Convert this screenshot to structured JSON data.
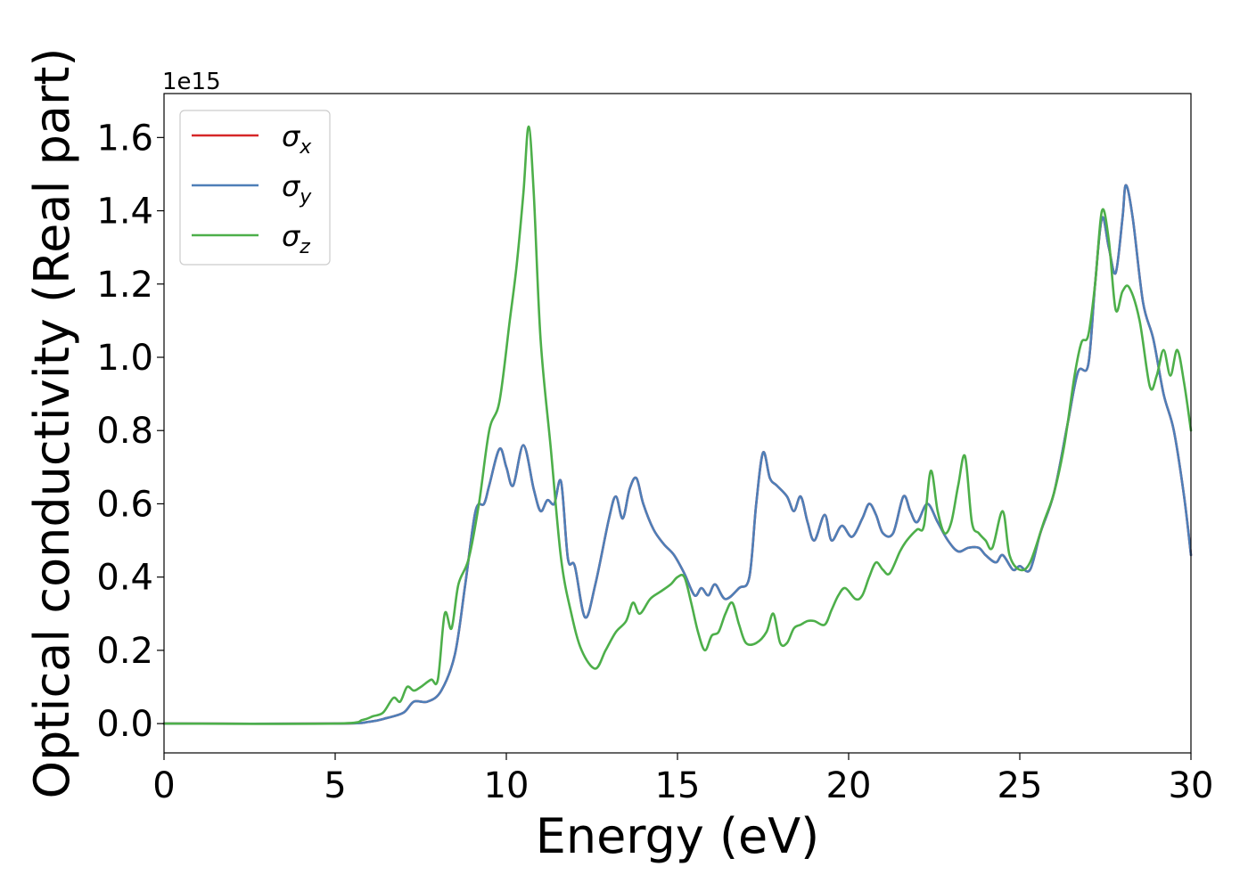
{
  "chart_data": {
    "type": "line",
    "xlabel": "Energy (eV)",
    "ylabel": "Optical conductivity (Real part)",
    "y_offset_label": "1e15",
    "xlim": [
      0,
      30
    ],
    "ylim": [
      -0.08,
      1.72
    ],
    "x_ticks": [
      0,
      5,
      10,
      15,
      20,
      25,
      30
    ],
    "x_tick_labels": [
      "0",
      "5",
      "10",
      "15",
      "20",
      "25",
      "30"
    ],
    "y_ticks": [
      0.0,
      0.2,
      0.4,
      0.6,
      0.8,
      1.0,
      1.2,
      1.4,
      1.6
    ],
    "y_tick_labels": [
      "0.0",
      "0.2",
      "0.4",
      "0.6",
      "0.8",
      "1.0",
      "1.2",
      "1.4",
      "1.6"
    ],
    "grid": false,
    "legend_position": "top-left",
    "series": [
      {
        "name": "σ",
        "subscript": "x",
        "color": "#d62728",
        "x": [
          0,
          5,
          6,
          6.5,
          7,
          7.3,
          7.7,
          8.1,
          8.5,
          8.8,
          9.1,
          9.35,
          9.5,
          9.8,
          10.0,
          10.2,
          10.5,
          10.8,
          11.0,
          11.2,
          11.4,
          11.6,
          11.8,
          12.0,
          12.3,
          12.6,
          13.0,
          13.2,
          13.4,
          13.6,
          13.8,
          14.0,
          14.3,
          14.6,
          14.9,
          15.2,
          15.5,
          15.7,
          15.9,
          16.1,
          16.4,
          16.8,
          17.1,
          17.3,
          17.5,
          17.7,
          17.9,
          18.2,
          18.4,
          18.6,
          18.8,
          19.0,
          19.3,
          19.5,
          19.8,
          20.1,
          20.4,
          20.6,
          20.8,
          21.0,
          21.3,
          21.6,
          21.8,
          22.0,
          22.3,
          22.6,
          22.9,
          23.2,
          23.5,
          23.8,
          24.0,
          24.3,
          24.5,
          24.8,
          25.0,
          25.3,
          25.6,
          26.0,
          26.4,
          26.7,
          27.0,
          27.2,
          27.4,
          27.6,
          27.8,
          28.0,
          28.1,
          28.3,
          28.6,
          28.9,
          29.2,
          29.5,
          29.8,
          30.0
        ],
        "y": [
          0,
          0,
          0.005,
          0.015,
          0.03,
          0.06,
          0.06,
          0.09,
          0.19,
          0.38,
          0.58,
          0.6,
          0.65,
          0.75,
          0.7,
          0.65,
          0.76,
          0.64,
          0.58,
          0.61,
          0.6,
          0.66,
          0.45,
          0.43,
          0.29,
          0.38,
          0.56,
          0.62,
          0.56,
          0.64,
          0.67,
          0.6,
          0.53,
          0.49,
          0.46,
          0.41,
          0.35,
          0.37,
          0.35,
          0.38,
          0.34,
          0.37,
          0.4,
          0.6,
          0.74,
          0.67,
          0.65,
          0.62,
          0.58,
          0.62,
          0.55,
          0.5,
          0.57,
          0.5,
          0.54,
          0.51,
          0.56,
          0.6,
          0.57,
          0.52,
          0.52,
          0.62,
          0.58,
          0.55,
          0.6,
          0.55,
          0.5,
          0.47,
          0.48,
          0.48,
          0.46,
          0.44,
          0.46,
          0.42,
          0.43,
          0.42,
          0.52,
          0.63,
          0.82,
          0.96,
          0.98,
          1.2,
          1.38,
          1.3,
          1.23,
          1.38,
          1.47,
          1.38,
          1.15,
          1.05,
          0.9,
          0.8,
          0.62,
          0.46
        ]
      },
      {
        "name": "σ",
        "subscript": "y",
        "color": "#4e7fb8",
        "x": [
          0,
          5,
          6,
          6.5,
          7,
          7.3,
          7.7,
          8.1,
          8.5,
          8.8,
          9.1,
          9.35,
          9.5,
          9.8,
          10.0,
          10.2,
          10.5,
          10.8,
          11.0,
          11.2,
          11.4,
          11.6,
          11.8,
          12.0,
          12.3,
          12.6,
          13.0,
          13.2,
          13.4,
          13.6,
          13.8,
          14.0,
          14.3,
          14.6,
          14.9,
          15.2,
          15.5,
          15.7,
          15.9,
          16.1,
          16.4,
          16.8,
          17.1,
          17.3,
          17.5,
          17.7,
          17.9,
          18.2,
          18.4,
          18.6,
          18.8,
          19.0,
          19.3,
          19.5,
          19.8,
          20.1,
          20.4,
          20.6,
          20.8,
          21.0,
          21.3,
          21.6,
          21.8,
          22.0,
          22.3,
          22.6,
          22.9,
          23.2,
          23.5,
          23.8,
          24.0,
          24.3,
          24.5,
          24.8,
          25.0,
          25.3,
          25.6,
          26.0,
          26.4,
          26.7,
          27.0,
          27.2,
          27.4,
          27.6,
          27.8,
          28.0,
          28.1,
          28.3,
          28.6,
          28.9,
          29.2,
          29.5,
          29.8,
          30.0
        ],
        "y": [
          0,
          0,
          0.005,
          0.015,
          0.03,
          0.06,
          0.06,
          0.09,
          0.19,
          0.38,
          0.58,
          0.6,
          0.65,
          0.75,
          0.7,
          0.65,
          0.76,
          0.64,
          0.58,
          0.61,
          0.6,
          0.66,
          0.45,
          0.43,
          0.29,
          0.38,
          0.56,
          0.62,
          0.56,
          0.64,
          0.67,
          0.6,
          0.53,
          0.49,
          0.46,
          0.41,
          0.35,
          0.37,
          0.35,
          0.38,
          0.34,
          0.37,
          0.4,
          0.6,
          0.74,
          0.67,
          0.65,
          0.62,
          0.58,
          0.62,
          0.55,
          0.5,
          0.57,
          0.5,
          0.54,
          0.51,
          0.56,
          0.6,
          0.57,
          0.52,
          0.52,
          0.62,
          0.58,
          0.55,
          0.6,
          0.55,
          0.5,
          0.47,
          0.48,
          0.48,
          0.46,
          0.44,
          0.46,
          0.42,
          0.43,
          0.42,
          0.52,
          0.63,
          0.82,
          0.96,
          0.98,
          1.2,
          1.38,
          1.3,
          1.23,
          1.38,
          1.47,
          1.38,
          1.15,
          1.05,
          0.9,
          0.8,
          0.62,
          0.46
        ]
      },
      {
        "name": "σ",
        "subscript": "z",
        "color": "#4daf4a",
        "x": [
          0,
          5,
          5.8,
          6.1,
          6.4,
          6.7,
          6.9,
          7.1,
          7.3,
          7.5,
          7.8,
          8.0,
          8.2,
          8.4,
          8.6,
          8.9,
          9.2,
          9.5,
          9.8,
          10.1,
          10.3,
          10.5,
          10.65,
          10.8,
          11.0,
          11.3,
          11.6,
          11.9,
          12.2,
          12.6,
          12.9,
          13.2,
          13.5,
          13.7,
          13.9,
          14.2,
          14.5,
          14.8,
          15.0,
          15.2,
          15.4,
          15.6,
          15.8,
          16.0,
          16.2,
          16.4,
          16.6,
          16.8,
          17.0,
          17.3,
          17.6,
          17.8,
          18.0,
          18.2,
          18.4,
          18.6,
          18.8,
          19.0,
          19.3,
          19.5,
          19.7,
          19.9,
          20.2,
          20.4,
          20.6,
          20.8,
          21.0,
          21.2,
          21.5,
          21.7,
          22.0,
          22.2,
          22.4,
          22.6,
          22.8,
          23.0,
          23.2,
          23.4,
          23.6,
          23.8,
          24.0,
          24.2,
          24.5,
          24.7,
          25.0,
          25.3,
          25.7,
          26.0,
          26.3,
          26.6,
          26.8,
          27.0,
          27.2,
          27.4,
          27.6,
          27.8,
          28.0,
          28.2,
          28.5,
          28.8,
          29.0,
          29.2,
          29.4,
          29.6,
          29.8,
          30.0
        ],
        "y": [
          0,
          0,
          0.01,
          0.02,
          0.03,
          0.07,
          0.06,
          0.1,
          0.09,
          0.1,
          0.12,
          0.12,
          0.3,
          0.26,
          0.38,
          0.45,
          0.6,
          0.8,
          0.88,
          1.1,
          1.25,
          1.45,
          1.63,
          1.45,
          1.05,
          0.75,
          0.45,
          0.3,
          0.2,
          0.15,
          0.2,
          0.25,
          0.28,
          0.33,
          0.3,
          0.34,
          0.36,
          0.38,
          0.4,
          0.4,
          0.33,
          0.25,
          0.2,
          0.24,
          0.25,
          0.3,
          0.33,
          0.27,
          0.22,
          0.22,
          0.25,
          0.3,
          0.22,
          0.22,
          0.26,
          0.27,
          0.28,
          0.28,
          0.27,
          0.31,
          0.35,
          0.37,
          0.34,
          0.35,
          0.4,
          0.44,
          0.42,
          0.41,
          0.47,
          0.5,
          0.53,
          0.54,
          0.69,
          0.58,
          0.52,
          0.55,
          0.65,
          0.73,
          0.55,
          0.52,
          0.5,
          0.48,
          0.58,
          0.46,
          0.42,
          0.44,
          0.55,
          0.63,
          0.76,
          0.95,
          1.04,
          1.06,
          1.2,
          1.4,
          1.32,
          1.13,
          1.18,
          1.19,
          1.1,
          0.92,
          0.95,
          1.02,
          0.95,
          1.02,
          0.93,
          0.8
        ]
      }
    ]
  }
}
